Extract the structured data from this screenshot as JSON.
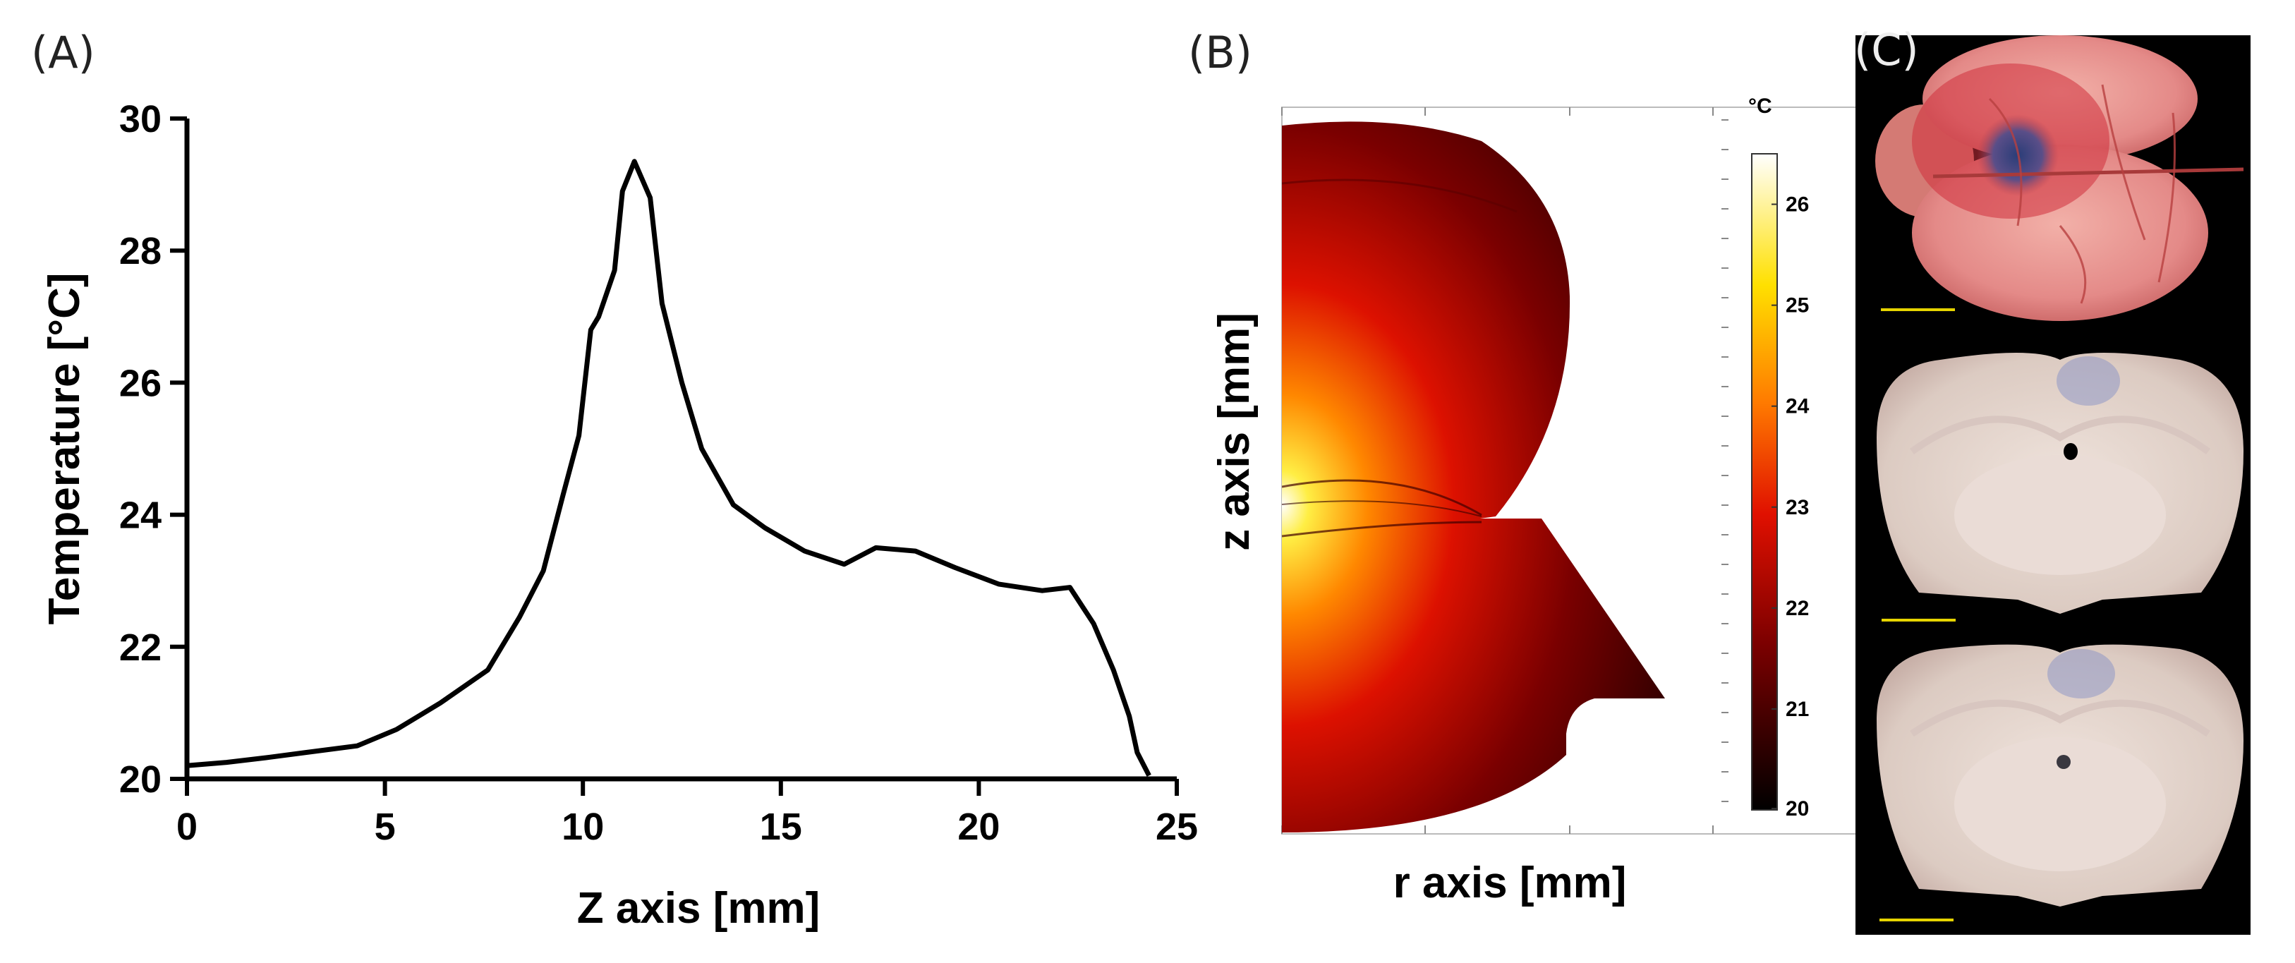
{
  "panels": {
    "a_label": "(A)",
    "b_label": "(B)",
    "c_label": "(C)"
  },
  "chart_data": [
    {
      "type": "line",
      "title": "",
      "xlabel": "Z axis [mm]",
      "ylabel": "Temperature [°C]",
      "xlim": [
        0,
        25
      ],
      "ylim": [
        20,
        30
      ],
      "xticks": [
        0,
        5,
        10,
        15,
        20,
        25
      ],
      "yticks": [
        20,
        22,
        24,
        26,
        28,
        30
      ],
      "grid": false,
      "series": [
        {
          "name": "temperature",
          "x": [
            0,
            1,
            2,
            3,
            4.3,
            5.3,
            6.4,
            7.6,
            8.4,
            9.0,
            9.5,
            9.9,
            10.2,
            10.4,
            10.8,
            11.0,
            11.3,
            11.7,
            12.0,
            12.5,
            13.0,
            13.8,
            14.6,
            15.6,
            16.6,
            17.4,
            18.4,
            19.4,
            20.5,
            21.6,
            22.3,
            22.9,
            23.4,
            23.8,
            24.0,
            24.3
          ],
          "y": [
            20.2,
            20.25,
            20.32,
            20.4,
            20.5,
            20.75,
            21.15,
            21.65,
            22.45,
            23.15,
            24.3,
            25.2,
            26.8,
            27.0,
            27.7,
            28.9,
            29.35,
            28.8,
            27.2,
            26.0,
            25.0,
            24.15,
            23.8,
            23.45,
            23.25,
            23.5,
            23.45,
            23.2,
            22.95,
            22.85,
            22.9,
            22.35,
            21.65,
            20.95,
            20.4,
            20.05
          ]
        }
      ]
    },
    {
      "type": "heatmap",
      "title": "",
      "xlabel": "r axis [mm]",
      "ylabel": "z axis [mm]",
      "colorbar": {
        "unit": "°C",
        "min": 20,
        "max": 26.5,
        "ticks": [
          20,
          21,
          22,
          23,
          24,
          25,
          26
        ]
      }
    }
  ],
  "colors": {
    "hot_low": "#1a0000",
    "hot_mid": "#cc1100",
    "hot_high": "#ffee44",
    "hot_max": "#ffffff",
    "photo_bg": "#000000",
    "brain_pink": "#e8a0a0",
    "slice_white": "#e6d8d2",
    "scale_bar": "#e6d400"
  },
  "images": [
    {
      "name": "whole-brain-photo",
      "desc_icon": "brain-icon"
    },
    {
      "name": "coronal-slice-1",
      "desc_icon": "slice-icon"
    },
    {
      "name": "coronal-slice-2",
      "desc_icon": "slice-icon"
    }
  ]
}
